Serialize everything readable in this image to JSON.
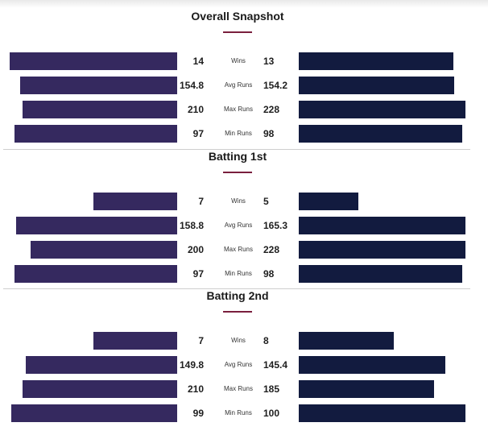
{
  "colors": {
    "left_team_bar": "#35295f",
    "right_team_bar": "#121b3f",
    "title_underline": "#7a1f3d",
    "divider": "#cfcfcf"
  },
  "chart_data": [
    {
      "type": "bar",
      "title": "Overall Snapshot",
      "categories": [
        "Wins",
        "Avg Runs",
        "Max Runs",
        "Min Runs"
      ],
      "series": [
        {
          "values": [
            14,
            154.8,
            210,
            97
          ]
        },
        {
          "values": [
            13,
            154.2,
            228,
            98
          ]
        }
      ]
    },
    {
      "type": "bar",
      "title": "Batting 1st",
      "categories": [
        "Wins",
        "Avg Runs",
        "Max Runs",
        "Min Runs"
      ],
      "series": [
        {
          "values": [
            7,
            158.8,
            200,
            97
          ]
        },
        {
          "values": [
            5,
            165.3,
            228,
            98
          ]
        }
      ]
    },
    {
      "type": "bar",
      "title": "Batting 2nd",
      "categories": [
        "Wins",
        "Avg Runs",
        "Max Runs",
        "Min Runs"
      ],
      "series": [
        {
          "values": [
            7,
            149.8,
            210,
            99
          ]
        },
        {
          "values": [
            8,
            145.4,
            185,
            100
          ]
        }
      ]
    }
  ]
}
